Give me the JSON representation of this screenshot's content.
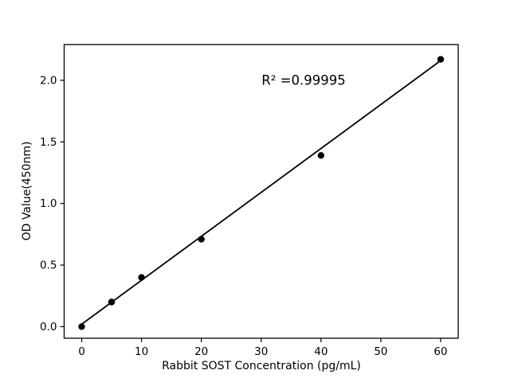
{
  "figure": {
    "background": "#ffffff"
  },
  "chart_data": {
    "type": "scatter",
    "title": "",
    "xlabel": "Rabbit SOST Concentration (pg/mL)",
    "ylabel": "OD Value(450nm)",
    "x": [
      0,
      5,
      10,
      20,
      40,
      60
    ],
    "y": [
      0.0,
      0.2,
      0.4,
      0.71,
      1.39,
      2.17
    ],
    "fit_line": {
      "type": "linear",
      "x": [
        0,
        60
      ],
      "y": [
        0.02,
        2.16
      ]
    },
    "r_squared": 0.99995,
    "annotation": {
      "text": "R² =0.99995"
    },
    "x_ticks": [
      0,
      10,
      20,
      30,
      40,
      50,
      60
    ],
    "y_ticks": [
      0.0,
      0.5,
      1.0,
      1.5,
      2.0
    ],
    "xlim": [
      -2.93,
      62.93
    ],
    "ylim": [
      -0.094,
      2.29
    ],
    "grid": false,
    "legend": null,
    "marker_color": "#000000",
    "line_color": "#000000",
    "axis_color": "#000000"
  }
}
